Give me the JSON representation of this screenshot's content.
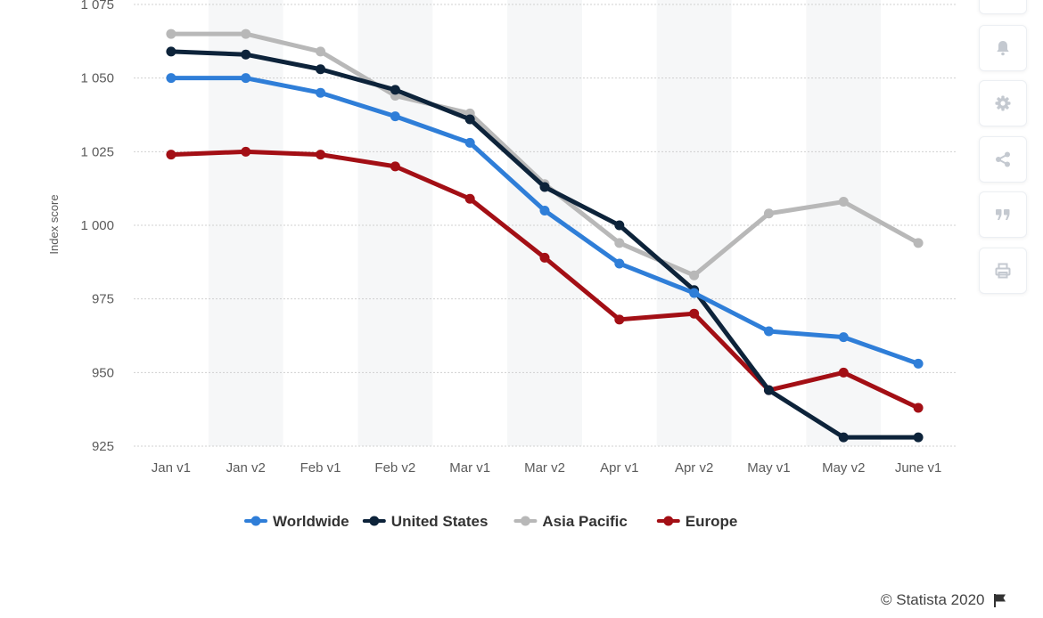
{
  "chart_data": {
    "type": "line",
    "title": "",
    "xlabel": "",
    "ylabel": "Index score",
    "ylim": [
      925,
      1075
    ],
    "yticks": [
      925,
      950,
      975,
      1000,
      1025,
      1050,
      1075
    ],
    "ytick_labels": [
      "925",
      "950",
      "975",
      "1 000",
      "1 025",
      "1 050",
      "1 075"
    ],
    "categories": [
      "Jan v1",
      "Jan v2",
      "Feb v1",
      "Feb v2",
      "Mar v1",
      "Mar v2",
      "Apr v1",
      "Apr v2",
      "May v1",
      "May v2",
      "June v1"
    ],
    "series": [
      {
        "name": "Worldwide",
        "color": "#2f7ed8",
        "values": [
          1050,
          1050,
          1045,
          1037,
          1028,
          1005,
          987,
          977,
          964,
          962,
          953
        ]
      },
      {
        "name": "United States",
        "color": "#0d233a",
        "values": [
          1059,
          1058,
          1053,
          1046,
          1036,
          1013,
          1000,
          978,
          944,
          928,
          928
        ]
      },
      {
        "name": "Asia Pacific",
        "color": "#b8b8b8",
        "values": [
          1065,
          1065,
          1059,
          1044,
          1038,
          1014,
          994,
          983,
          1004,
          1008,
          994
        ]
      },
      {
        "name": "Europe",
        "color": "#a30f15",
        "values": [
          1024,
          1025,
          1024,
          1020,
          1009,
          989,
          968,
          970,
          944,
          950,
          938
        ]
      }
    ],
    "legend": "bottom"
  },
  "toolbar": {
    "buttons": [
      {
        "name": "notification-bell",
        "icon": "bell-icon"
      },
      {
        "name": "settings",
        "icon": "gear-icon"
      },
      {
        "name": "share",
        "icon": "share-icon"
      },
      {
        "name": "cite",
        "icon": "quote-icon"
      },
      {
        "name": "print",
        "icon": "print-icon"
      }
    ]
  },
  "credit": {
    "text": "© Statista 2020"
  }
}
